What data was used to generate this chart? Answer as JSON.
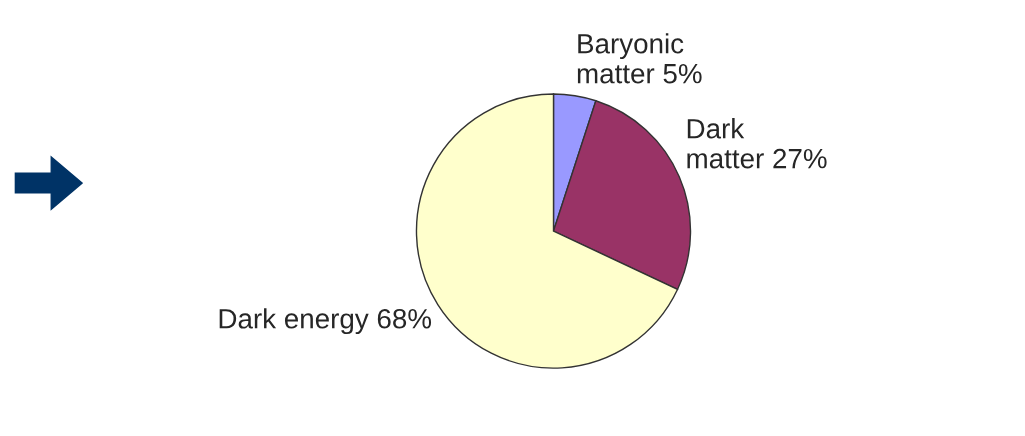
{
  "chart_data": {
    "type": "pie",
    "categories": [
      "Baryonic\nmatter",
      "Dark\nmatter",
      "Dark energy"
    ],
    "values": [
      5,
      27,
      68
    ],
    "value_labels": [
      "5%",
      "27%",
      "68%"
    ],
    "colors": [
      "#9999ff",
      "#993366",
      "#ffffcc"
    ],
    "legend": false
  }
}
